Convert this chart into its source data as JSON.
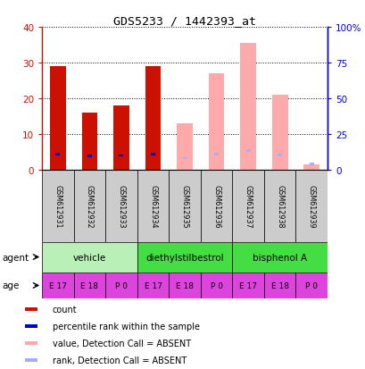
{
  "title": "GDS5233 / 1442393_at",
  "samples": [
    "GSM612931",
    "GSM612932",
    "GSM612933",
    "GSM612934",
    "GSM612935",
    "GSM612936",
    "GSM612937",
    "GSM612938",
    "GSM612939"
  ],
  "count_values": [
    29.0,
    16.0,
    18.0,
    29.0,
    0,
    0,
    0,
    0,
    0
  ],
  "percentile_values": [
    11.0,
    9.5,
    10.0,
    11.0,
    0,
    11.0,
    13.5,
    10.5,
    0
  ],
  "absent_value_bars": [
    0,
    0,
    0,
    0,
    13.0,
    27.0,
    35.5,
    21.0,
    1.5
  ],
  "absent_rank_bars": [
    0,
    0,
    0,
    0,
    8.0,
    11.0,
    13.5,
    10.5,
    4.0
  ],
  "detection_absent": [
    false,
    false,
    false,
    false,
    true,
    true,
    true,
    true,
    true
  ],
  "ylim_left": [
    0,
    40
  ],
  "ylim_right": [
    0,
    100
  ],
  "yticks_left": [
    0,
    10,
    20,
    30,
    40
  ],
  "yticks_right": [
    0,
    25,
    50,
    75,
    100
  ],
  "ytick_labels_left": [
    "0",
    "10",
    "20",
    "30",
    "40"
  ],
  "ytick_labels_right": [
    "0",
    "25",
    "50",
    "75",
    "100%"
  ],
  "agent_configs": [
    {
      "label": "vehicle",
      "cols": [
        0,
        1,
        2
      ],
      "color": "#b8f0b8"
    },
    {
      "label": "diethylstilbestrol",
      "cols": [
        3,
        4,
        5
      ],
      "color": "#44dd44"
    },
    {
      "label": "bisphenol A",
      "cols": [
        6,
        7,
        8
      ],
      "color": "#44dd44"
    }
  ],
  "age_labels": [
    "E 17",
    "E 18",
    "P 0",
    "E 17",
    "E 18",
    "P 0",
    "E 17",
    "E 18",
    "P 0"
  ],
  "age_color": "#dd44dd",
  "sample_bg_color": "#cccccc",
  "bar_width": 0.5,
  "count_color": "#cc1100",
  "percentile_color": "#0000cc",
  "absent_value_color": "#ffaaaa",
  "absent_rank_color": "#aaaaff",
  "axis_left_color": "#cc1100",
  "axis_right_color": "#0000cc"
}
